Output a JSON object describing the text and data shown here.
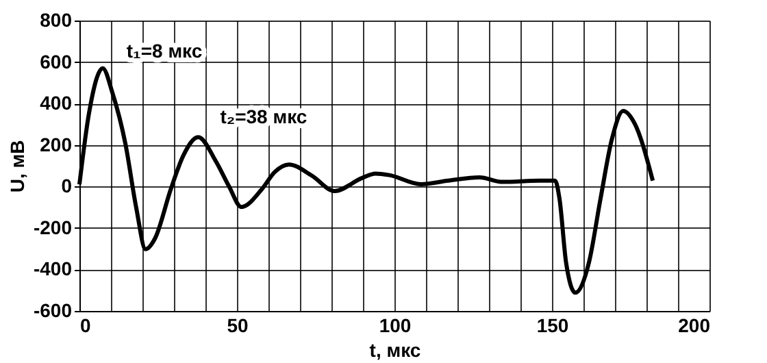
{
  "chart_data": {
    "type": "line",
    "xlabel": "t, мкс",
    "ylabel": "U, мВ",
    "xlim": [
      0,
      200
    ],
    "ylim": [
      -600,
      800
    ],
    "xticks": [
      0,
      {
        "value": 10,
        "label": null
      },
      {
        "value": 20,
        "label": null
      },
      {
        "value": 30,
        "label": null
      },
      {
        "value": 40,
        "label": null
      },
      50,
      {
        "value": 60,
        "label": null
      },
      {
        "value": 70,
        "label": null
      },
      {
        "value": 80,
        "label": null
      },
      {
        "value": 90,
        "label": null
      },
      100,
      {
        "value": 110,
        "label": null
      },
      {
        "value": 120,
        "label": null
      },
      {
        "value": 130,
        "label": null
      },
      {
        "value": 140,
        "label": null
      },
      150,
      {
        "value": 160,
        "label": null
      },
      {
        "value": 170,
        "label": null
      },
      {
        "value": 180,
        "label": null
      },
      {
        "value": 190,
        "label": null
      },
      200
    ],
    "yticks": [
      -600,
      -400,
      -200,
      0,
      200,
      400,
      600,
      800
    ],
    "grid": true,
    "marker": "none",
    "line_style": "solid",
    "series": [
      {
        "color": "#000000",
        "x": [
          0,
          3,
          7.4,
          10.5,
          14.6,
          18,
          21,
          24,
          29,
          33,
          37.7,
          43.4,
          47.5,
          51.4,
          57.9,
          62,
          66.5,
          73.7,
          81,
          89.6,
          94,
          98.3,
          108.4,
          117,
          127,
          134.3,
          145.9,
          151,
          152.4,
          154.5,
          157.4,
          161.7,
          165.4,
          169,
          172.6,
          176.2,
          182
        ],
        "values": [
          10,
          350,
          570,
          450,
          205,
          -100,
          -302,
          -250,
          -13,
          150,
          238,
          119,
          0,
          -99,
          -13,
          70,
          106,
          53,
          -22,
          40,
          62,
          55,
          11,
          28,
          44,
          22,
          28,
          28,
          -60,
          -369,
          -512,
          -369,
          -60,
          227,
          364,
          305,
          28
        ]
      }
    ],
    "annotations": [
      {
        "text": "t₁=8 мкс",
        "x": 8,
        "y": 570
      },
      {
        "text": "t₂=38 мкс",
        "x": 37.7,
        "y": 238
      }
    ]
  }
}
